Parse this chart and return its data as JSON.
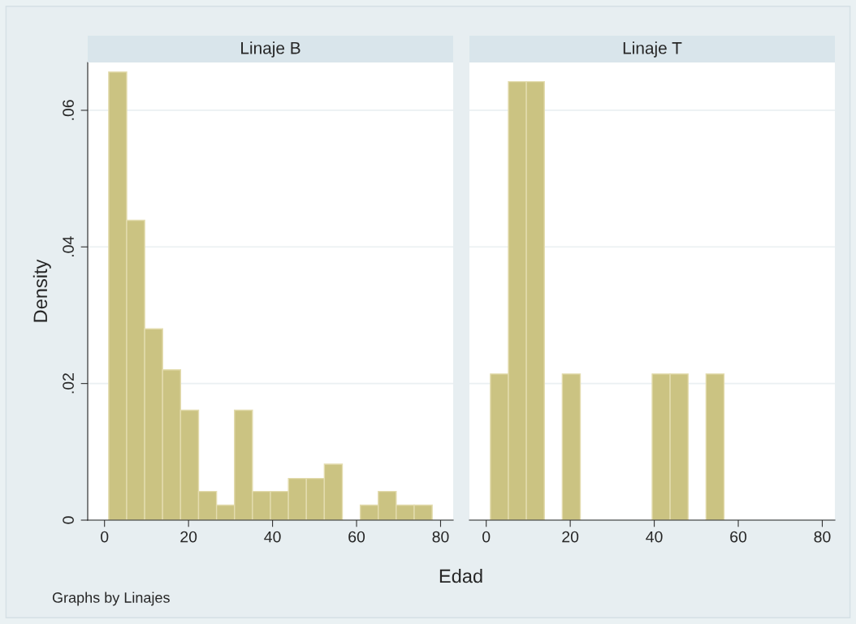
{
  "chart_data": [
    {
      "type": "histogram",
      "title": "Linaje B",
      "ylabel": "Density",
      "xlabel": "Edad",
      "annotations": [
        "Graphs by Linajes"
      ],
      "color": "#cbc382",
      "bins": [
        1,
        5.28,
        9.56,
        13.83,
        18.11,
        22.39,
        26.67,
        30.94,
        35.22,
        39.5,
        43.78,
        48.06,
        52.33,
        56.61,
        60.89,
        65.17,
        69.44,
        73.72,
        78
      ],
      "values": [
        0.0656,
        0.0439,
        0.028,
        0.022,
        0.0161,
        0.0042,
        0.0022,
        0.0161,
        0.0042,
        0.0042,
        0.0061,
        0.0061,
        0.0082,
        0,
        0.0022,
        0.0042,
        0.0022,
        0.0022
      ],
      "xlim": [
        -4,
        83
      ],
      "xticks": [
        0,
        20,
        40,
        60,
        80
      ],
      "ylim": [
        0,
        0.067
      ],
      "yticks": [
        {
          "value": 0,
          "label": "0"
        },
        {
          "value": 0.02,
          "label": ".02"
        },
        {
          "value": 0.04,
          "label": ".04"
        },
        {
          "value": 0.06,
          "label": ".06"
        }
      ],
      "grid": "y"
    },
    {
      "type": "histogram",
      "title": "Linaje T",
      "color": "#cbc382",
      "bins": [
        1,
        5.28,
        9.56,
        13.83,
        18.11,
        22.39,
        26.67,
        30.94,
        35.22,
        39.5,
        43.78,
        48.06,
        52.33,
        56.61,
        60.89,
        65.17,
        69.44,
        73.72,
        78
      ],
      "values": [
        0.0214,
        0.0642,
        0.0642,
        0,
        0.0214,
        0,
        0,
        0,
        0,
        0.0214,
        0.0214,
        0,
        0.0214,
        0,
        0,
        0,
        0,
        0
      ],
      "xlim": [
        -4,
        83
      ],
      "xticks": [
        0,
        20,
        40,
        60,
        80
      ],
      "ylim": [
        0,
        0.067
      ],
      "yticks": [
        0,
        0.02,
        0.04,
        0.06
      ],
      "grid": "y",
      "tick_labels": "x"
    }
  ]
}
